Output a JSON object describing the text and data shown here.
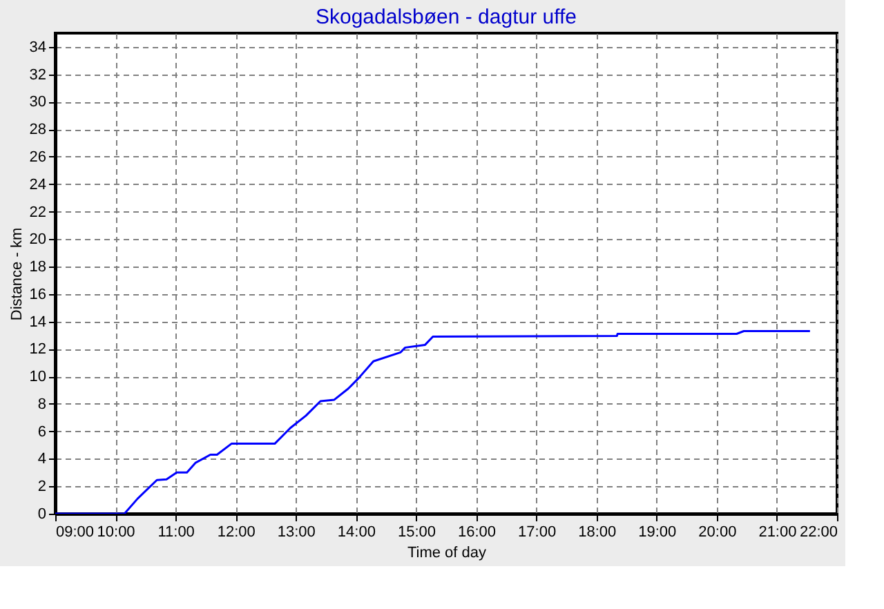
{
  "chart_data": {
    "type": "line",
    "title": "Skogadalsbøen - dagtur uffe",
    "xlabel": "Time of day",
    "ylabel": "Distance - km",
    "x": [
      9.0,
      10.15,
      10.37,
      10.69,
      10.85,
      11.02,
      11.19,
      11.33,
      11.58,
      11.69,
      11.93,
      12.65,
      12.91,
      13.17,
      13.41,
      13.64,
      13.87,
      14.05,
      14.29,
      14.74,
      14.82,
      15.15,
      15.28,
      18.34,
      18.35,
      20.33,
      20.45,
      21.55
    ],
    "series": [
      {
        "color": "#0000ff",
        "values": [
          0,
          0,
          1.1,
          2.45,
          2.5,
          3.0,
          3.0,
          3.7,
          4.3,
          4.3,
          5.1,
          5.1,
          6.25,
          7.15,
          8.2,
          8.3,
          9.1,
          9.9,
          11.1,
          11.75,
          12.1,
          12.3,
          12.9,
          12.95,
          13.1,
          13.1,
          13.3,
          13.3
        ]
      }
    ],
    "xlim": [
      9,
      22
    ],
    "xticks": [
      {
        "value": 9,
        "label": "09:00"
      },
      {
        "value": 10,
        "label": "10:00"
      },
      {
        "value": 11,
        "label": "11:00"
      },
      {
        "value": 12,
        "label": "12:00"
      },
      {
        "value": 13,
        "label": "13:00"
      },
      {
        "value": 14,
        "label": "14:00"
      },
      {
        "value": 15,
        "label": "15:00"
      },
      {
        "value": 16,
        "label": "16:00"
      },
      {
        "value": 17,
        "label": "17:00"
      },
      {
        "value": 18,
        "label": "18:00"
      },
      {
        "value": 19,
        "label": "19:00"
      },
      {
        "value": 20,
        "label": "20:00"
      },
      {
        "value": 21,
        "label": "21:00"
      },
      {
        "value": 22,
        "label": "22:00"
      }
    ],
    "ylim": [
      0,
      35
    ],
    "yticks": [
      0,
      2,
      4,
      6,
      8,
      10,
      12,
      14,
      16,
      18,
      20,
      22,
      24,
      26,
      28,
      30,
      32,
      34
    ],
    "grid": true,
    "line_style": "solid",
    "marker": "none"
  }
}
